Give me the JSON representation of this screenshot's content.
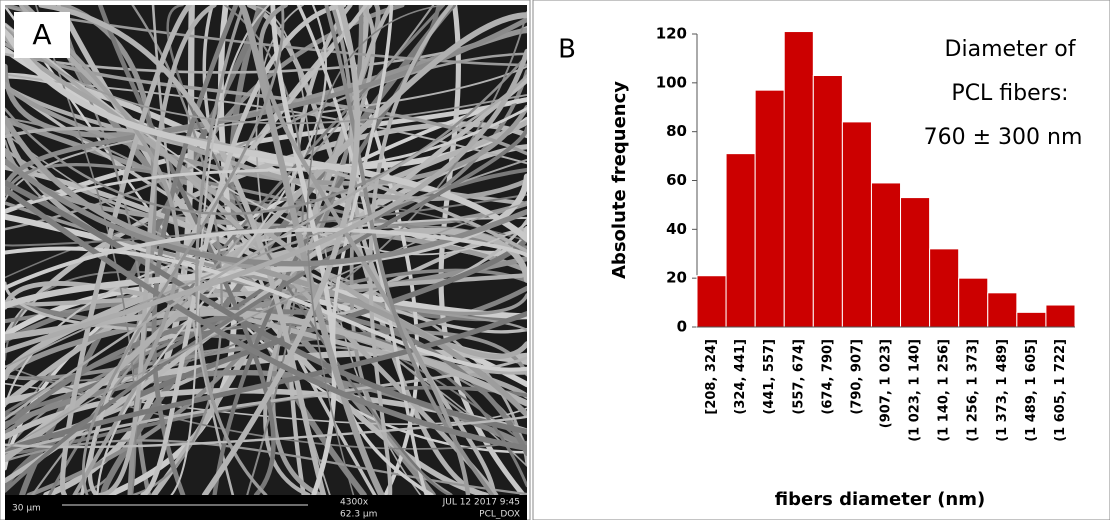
{
  "panel_a": {
    "label": "A",
    "scale_bar": "30 µm",
    "magnification": "4300x",
    "field": "62.3 µm",
    "date": "JUL 12 2017 9:45",
    "sample": "PCL_DOX"
  },
  "chart_data": {
    "type": "bar",
    "panel_label": "B",
    "annotation": [
      "Diameter of",
      "PCL fibers:",
      "760 ± 300 nm"
    ],
    "y_label": "Absolute frequency",
    "x_label": "fibers diameter (nm)",
    "categories": [
      "[208, 324]",
      "(324, 441]",
      "(441, 557]",
      "(557, 674]",
      "(674, 790]",
      "(790, 907]",
      "(907, 1 023]",
      "(1 023, 1 140]",
      "(1 140, 1 256]",
      "(1 256, 1 373]",
      "(1 373, 1 489]",
      "(1 489, 1 605]",
      "(1 605, 1 722]"
    ],
    "values": [
      21,
      71,
      97,
      121,
      103,
      84,
      59,
      53,
      32,
      20,
      14,
      6,
      9
    ],
    "color": "#cc0000",
    "ylim": [
      0,
      120
    ],
    "yticks": [
      0,
      20,
      40,
      60,
      80,
      100,
      120
    ]
  }
}
